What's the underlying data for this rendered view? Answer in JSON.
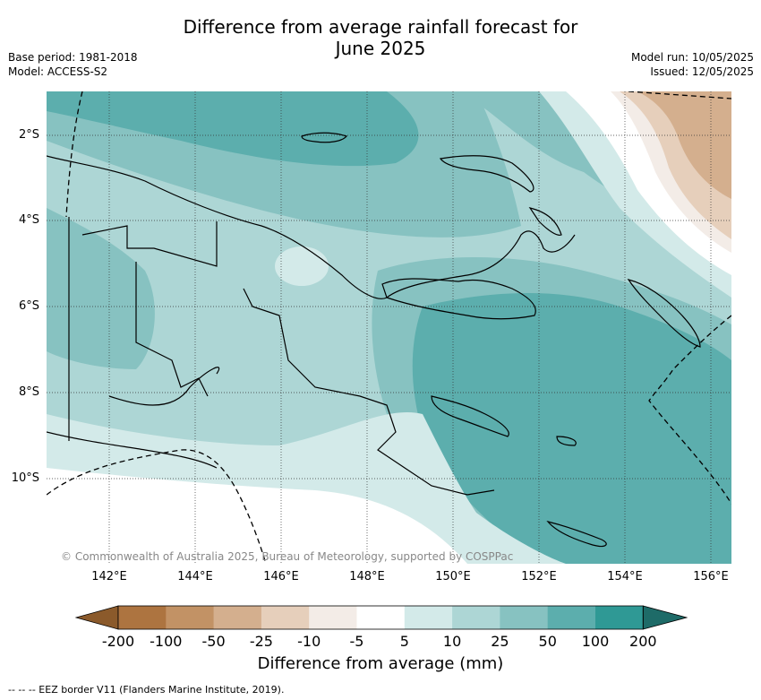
{
  "title_line1": "Difference from average rainfall forecast for",
  "title_line2": "June 2025",
  "meta_left": {
    "base_period": "Base period: 1981-2018",
    "model": "Model: ACCESS-S2"
  },
  "meta_right": {
    "model_run": "Model run: 10/05/2025",
    "issued": "Issued: 12/05/2025"
  },
  "lat_labels": [
    "2°S",
    "4°S",
    "6°S",
    "8°S",
    "10°S"
  ],
  "lon_labels": [
    "142°E",
    "144°E",
    "146°E",
    "148°E",
    "150°E",
    "152°E",
    "154°E",
    "156°E"
  ],
  "copyright": "© Commonwealth of Australia 2025, Bureau of Meteorology, supported by COSPPac",
  "colorbar": {
    "ticks": [
      "-200",
      "-100",
      "-50",
      "-25",
      "-10",
      "-5",
      "5",
      "10",
      "25",
      "50",
      "100",
      "200"
    ],
    "colors": [
      "#8b5a2b",
      "#ad7440",
      "#c29265",
      "#d4af8e",
      "#e6cfbb",
      "#f3ece7",
      "#ffffff",
      "#d3eae9",
      "#add6d5",
      "#87c2c1",
      "#5caead",
      "#2f9995",
      "#1e6b68"
    ],
    "label": "Difference from average (mm)"
  },
  "eez_note": "-- -- -- EEZ border V11 (Flanders Marine Institute, 2019)."
}
